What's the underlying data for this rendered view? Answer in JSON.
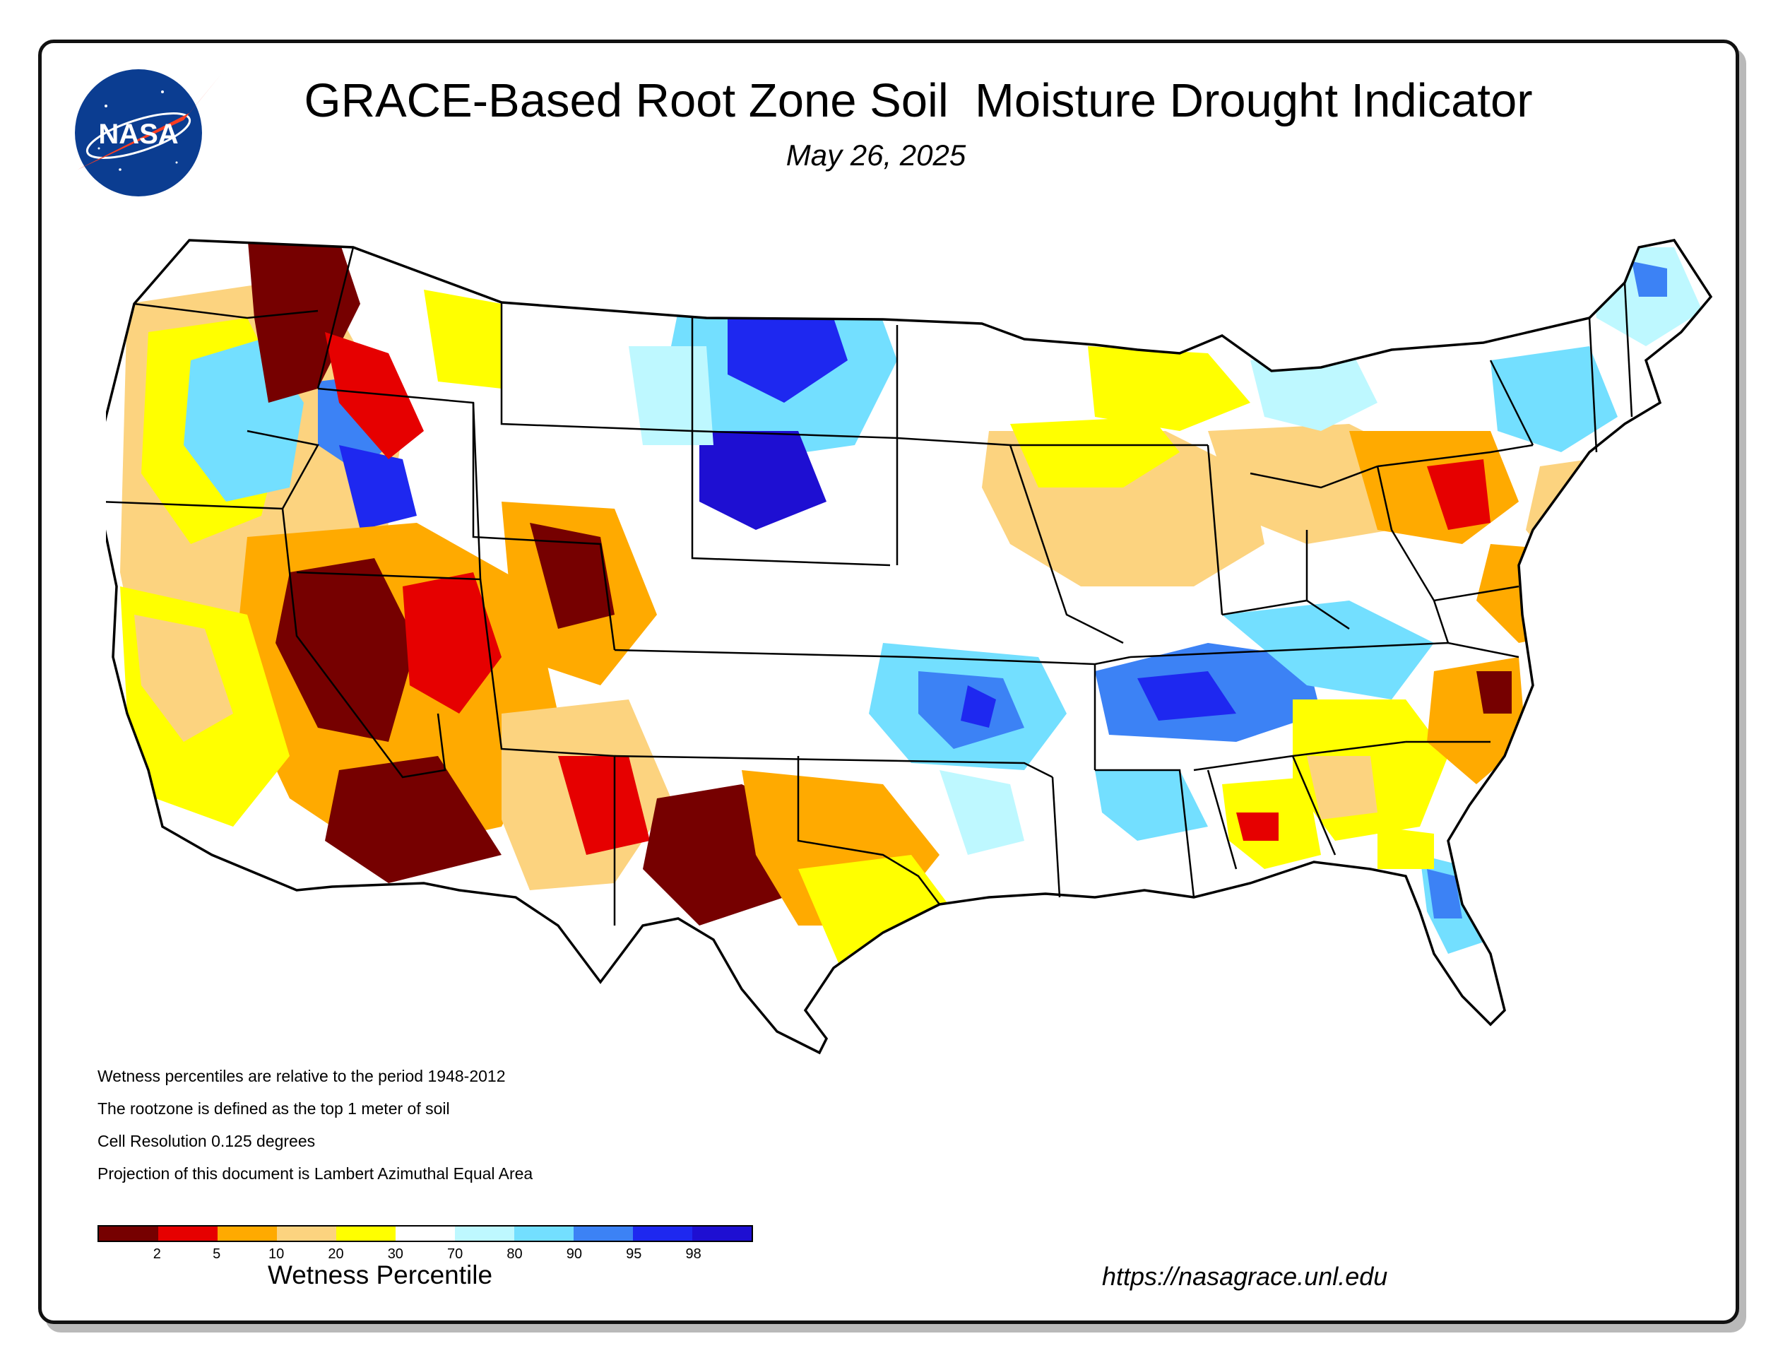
{
  "header": {
    "title": "GRACE-Based Root Zone Soil  Moisture Drought Indicator",
    "date": "May 26, 2025"
  },
  "logo": {
    "text": "NASA",
    "icon": "nasa-meatball-logo"
  },
  "notes": [
    "Wetness percentiles are relative to the period 1948-2012",
    "The rootzone is defined as the top 1 meter of soil",
    "Cell Resolution 0.125 degrees",
    "Projection of this document is Lambert Azimuthal Equal Area"
  ],
  "legend": {
    "title": "Wetness Percentile",
    "tick_labels": [
      "2",
      "5",
      "10",
      "20",
      "30",
      "70",
      "80",
      "90",
      "95",
      "98"
    ],
    "colors": [
      "#760000",
      "#e60000",
      "#ffaa00",
      "#fcd37f",
      "#ffff00",
      "#ffffff",
      "#bef8ff",
      "#73dfff",
      "#3c82f5",
      "#1e28f0",
      "#1e0fd2"
    ]
  },
  "footer": {
    "url": "https://nasagrace.unl.edu"
  },
  "map": {
    "region": "Contiguous United States",
    "colors": {
      "outline": "#000000",
      "land": "#ffffff",
      "water": "#ffffff"
    }
  }
}
